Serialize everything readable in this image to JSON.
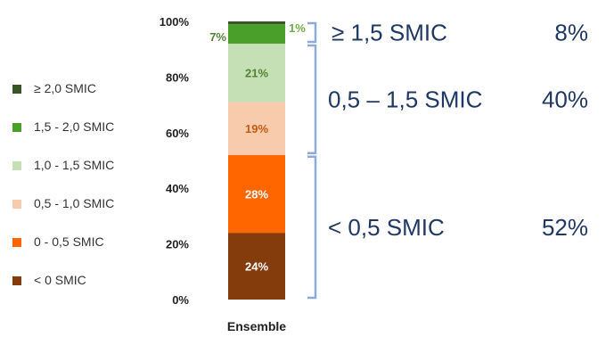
{
  "chart_data": {
    "type": "bar",
    "stacked": true,
    "categories": [
      "Ensemble"
    ],
    "ylim": [
      0,
      100
    ],
    "yticks": [
      "0%",
      "20%",
      "40%",
      "60%",
      "80%",
      "100%"
    ],
    "series": [
      {
        "name": "< 0 SMIC",
        "values": [
          24
        ],
        "label": "24%",
        "color": "#843c0c",
        "label_color": "#ffffff"
      },
      {
        "name": "0 - 0,5 SMIC",
        "values": [
          28
        ],
        "label": "28%",
        "color": "#ff6600",
        "label_color": "#ffffff"
      },
      {
        "name": "0,5 - 1,0 SMIC",
        "values": [
          19
        ],
        "label": "19%",
        "color": "#f8cbad",
        "label_color": "#c55a11"
      },
      {
        "name": "1,0 - 1,5 SMIC",
        "values": [
          21
        ],
        "label": "21%",
        "color": "#c5e0b4",
        "label_color": "#548235"
      },
      {
        "name": "1,5 - 2,0 SMIC",
        "values": [
          7
        ],
        "label": "7%",
        "color": "#4a9e2a",
        "label_color": "#548235"
      },
      {
        "name": "≥ 2,0 SMIC",
        "values": [
          1
        ],
        "label": "1%",
        "color": "#375623",
        "label_color": "#70ad47"
      }
    ],
    "legend_position": "left",
    "groups": [
      {
        "label": "≥ 1,5 SMIC",
        "value": "8%",
        "from": 92,
        "to": 100
      },
      {
        "label": "0,5 – 1,5 SMIC",
        "value": "40%",
        "from": 52,
        "to": 92
      },
      {
        "label": "< 0,5 SMIC",
        "value": "52%",
        "from": 0,
        "to": 52
      }
    ],
    "bracket_color": "#8eaadb",
    "group_text_color": "#1f3864"
  }
}
